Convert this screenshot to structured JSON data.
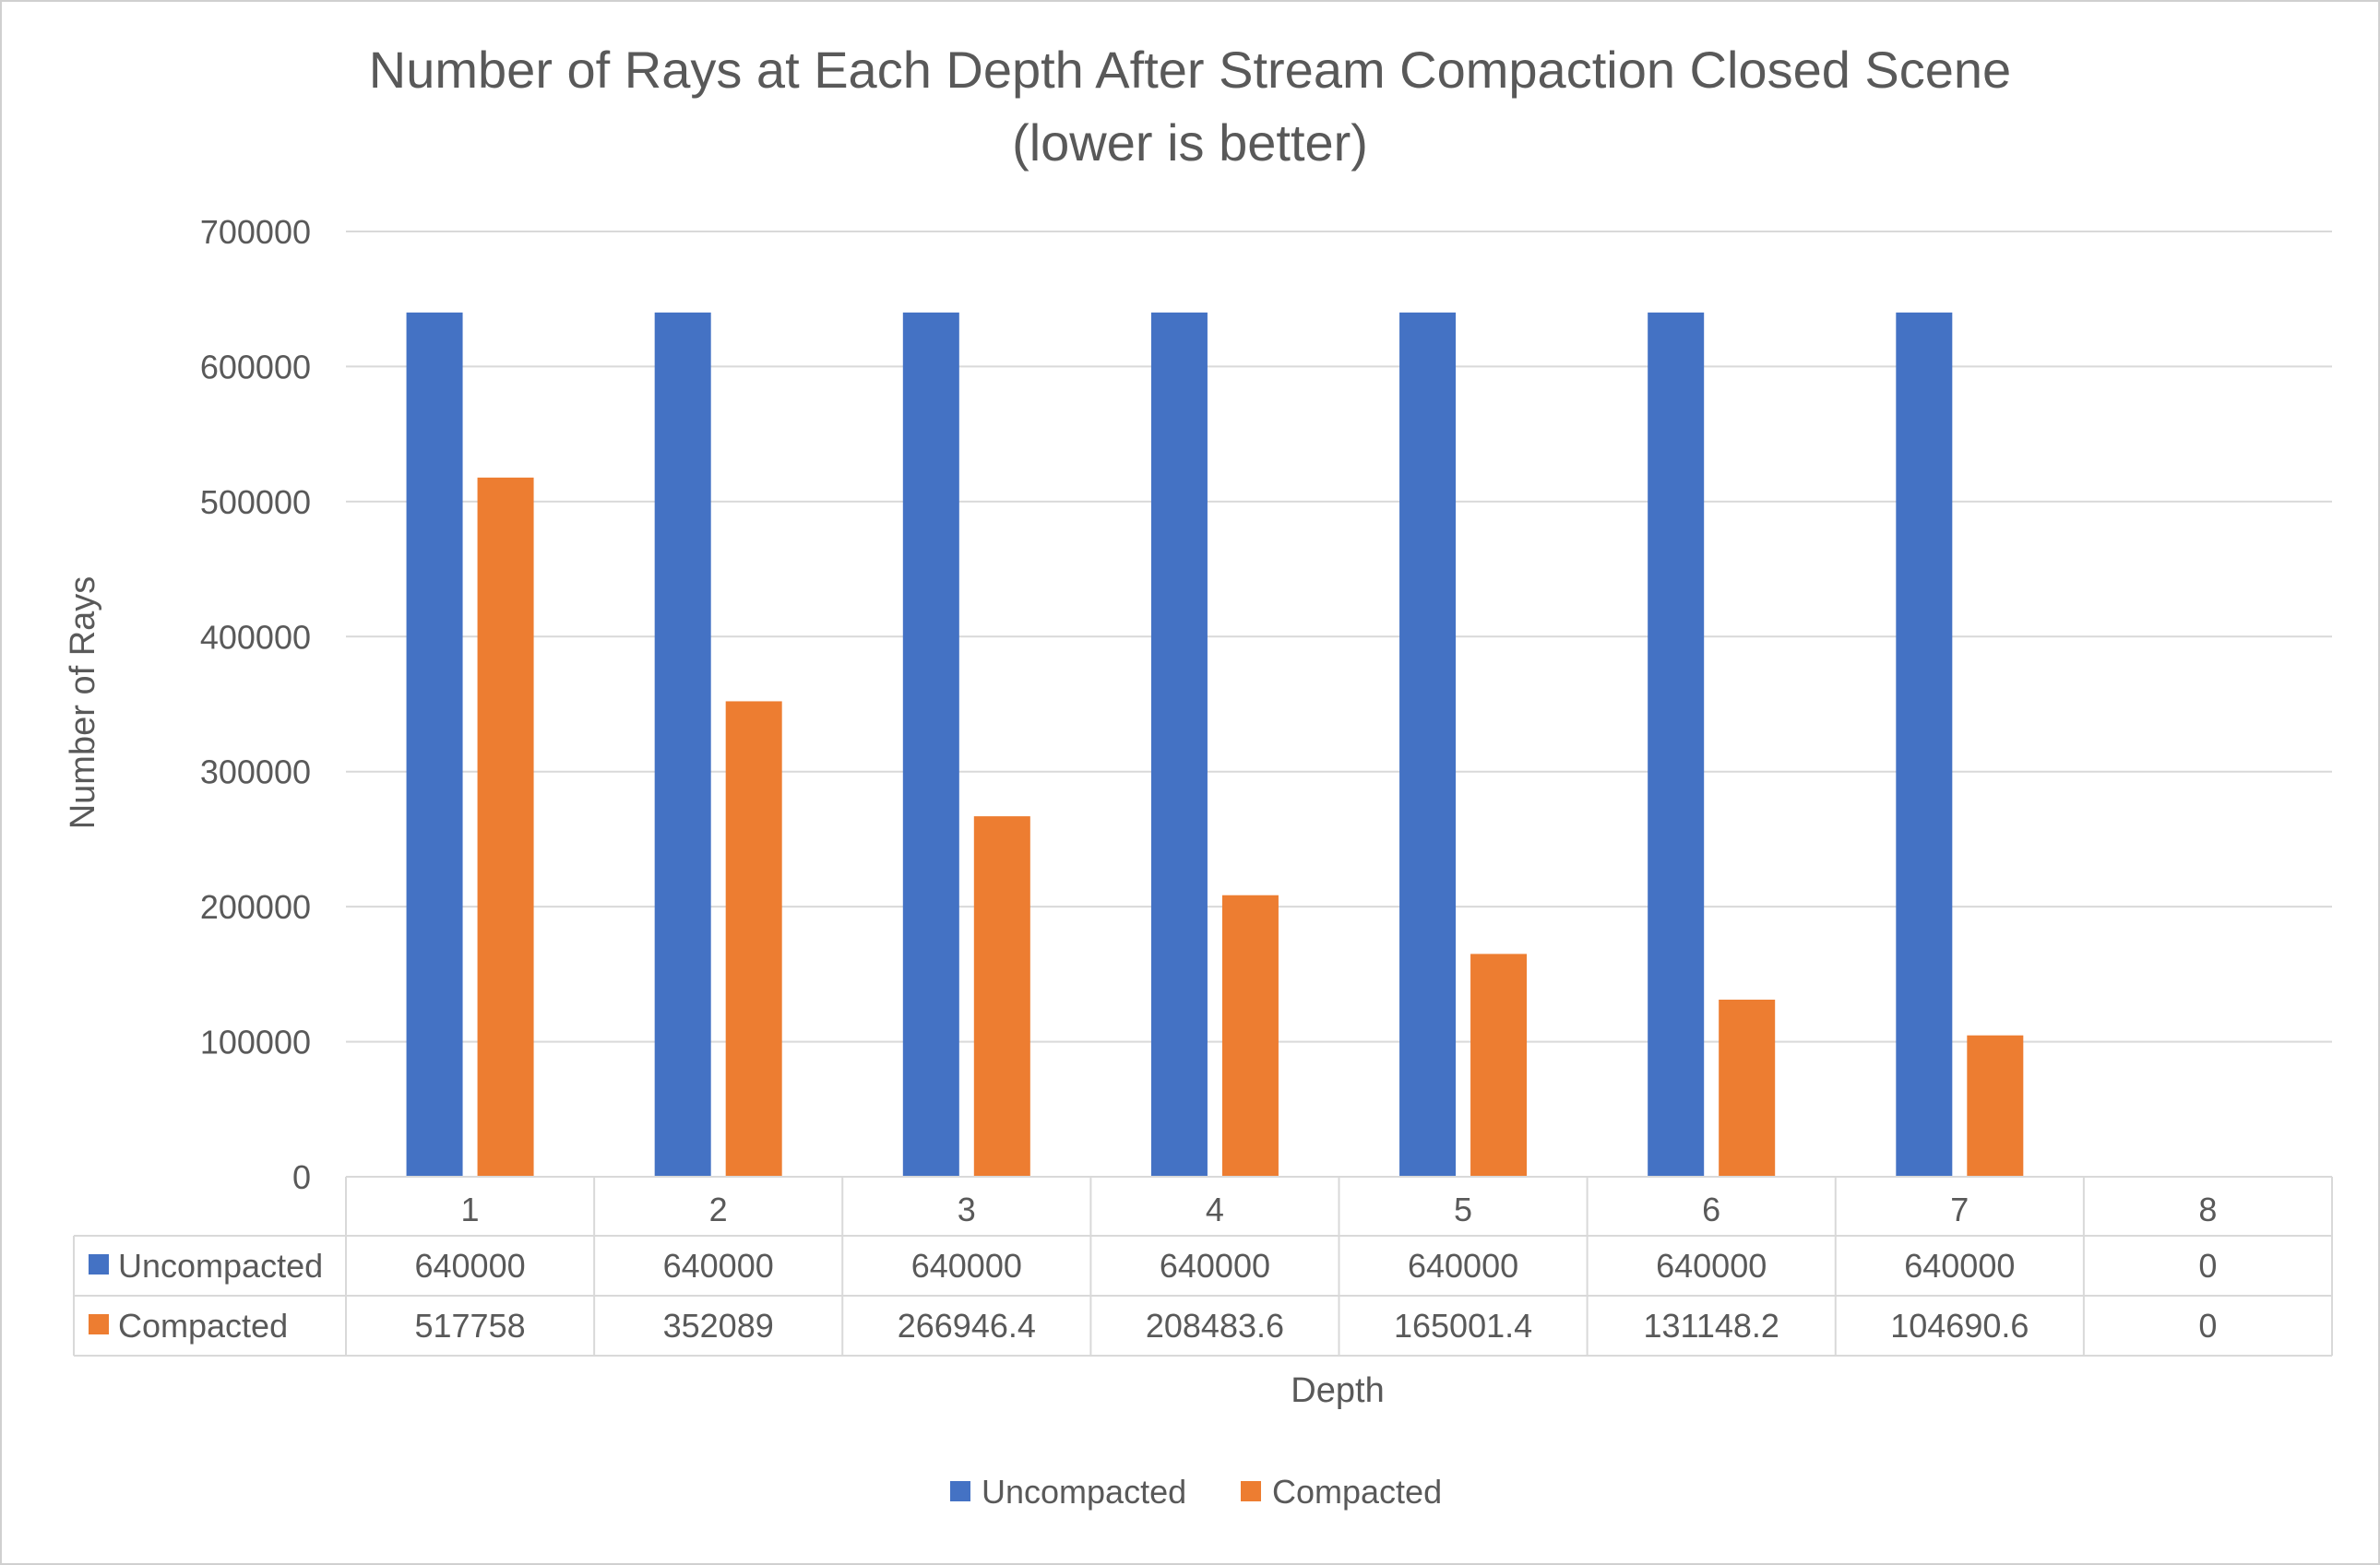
{
  "chart_data": {
    "type": "bar",
    "title_line1": "Number of Rays at Each Depth After Stream Compaction Closed Scene",
    "title_line2": "(lower is better)",
    "xlabel": "Depth",
    "ylabel": "Number of Rays",
    "categories": [
      "1",
      "2",
      "3",
      "4",
      "5",
      "6",
      "7",
      "8"
    ],
    "series": [
      {
        "name": "Uncompacted",
        "color": "#4472C4",
        "values": [
          640000,
          640000,
          640000,
          640000,
          640000,
          640000,
          640000,
          0
        ],
        "labels": [
          "640000",
          "640000",
          "640000",
          "640000",
          "640000",
          "640000",
          "640000",
          "0"
        ]
      },
      {
        "name": "Compacted",
        "color": "#ED7D31",
        "values": [
          517758,
          352089,
          266946.4,
          208483.6,
          165001.4,
          131148.2,
          104690.6,
          0
        ],
        "labels": [
          "517758",
          "352089",
          "266946.4",
          "208483.6",
          "165001.4",
          "131148.2",
          "104690.6",
          "0"
        ]
      }
    ],
    "ylim": [
      0,
      700000
    ],
    "yticks": [
      "0",
      "100000",
      "200000",
      "300000",
      "400000",
      "500000",
      "600000",
      "700000"
    ],
    "grid": true,
    "legend": "bottom-center",
    "data_table": true
  }
}
